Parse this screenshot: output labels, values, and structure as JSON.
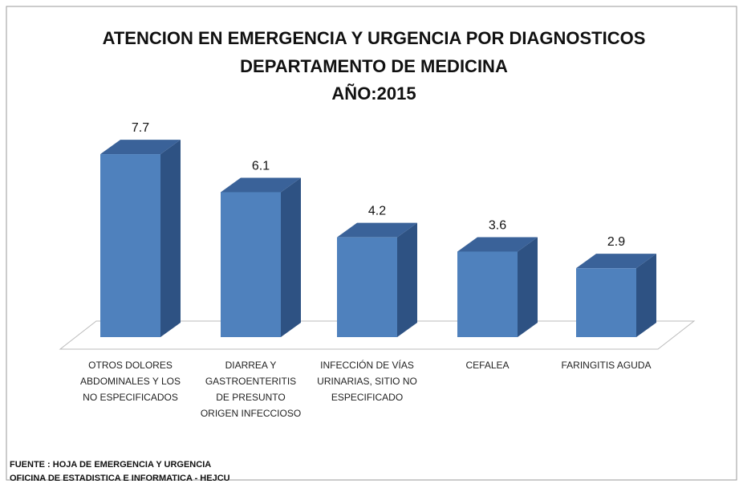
{
  "chart_data": {
    "type": "bar3d",
    "title": [
      "ATENCION EN EMERGENCIA Y URGENCIA POR DIAGNOSTICOS",
      "DEPARTAMENTO DE MEDICINA",
      "AÑO:2015"
    ],
    "categories": [
      "OTROS DOLORES ABDOMINALES Y LOS NO ESPECIFICADOS",
      "DIARREA Y GASTROENTERITIS DE PRESUNTO ORIGEN INFECCIOSO",
      "INFECCIÓN DE VÍAS URINARIAS, SITIO NO ESPECIFICADO",
      "CEFALEA",
      "FARINGITIS AGUDA"
    ],
    "values": [
      7.7,
      6.1,
      4.2,
      3.6,
      2.9
    ],
    "color": "#4f81bd",
    "source": [
      "FUENTE : HOJA DE EMERGENCIA Y URGENCIA",
      "OFICINA DE ESTADISTICA E INFORMATICA - HEJCU"
    ]
  }
}
